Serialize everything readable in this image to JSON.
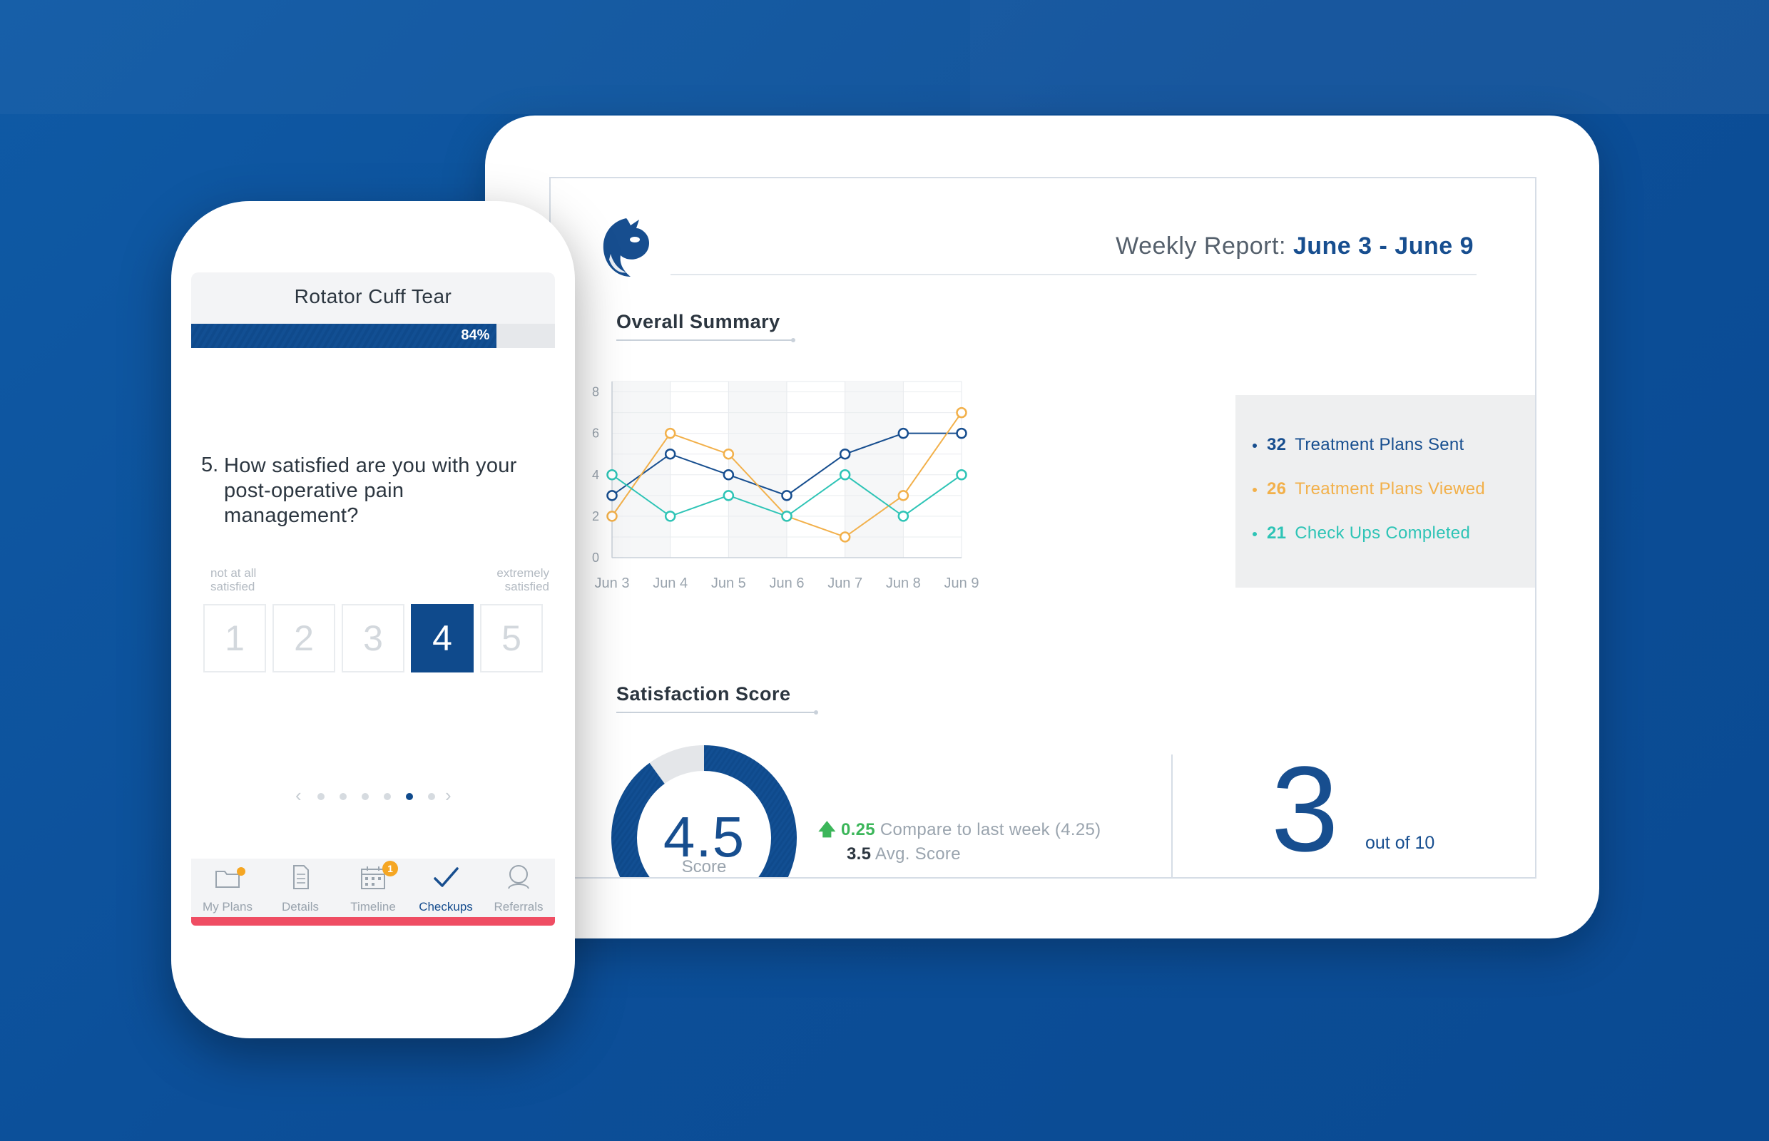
{
  "report": {
    "title_prefix": "Weekly Report:",
    "title_range": "June 3 - June 9",
    "overall_summary": "Overall Summary",
    "satisfaction_score": "Satisfaction Score"
  },
  "legend": [
    {
      "num": "32",
      "label": "Treatment Plans Sent",
      "color": "#174e8f"
    },
    {
      "num": "26",
      "label": "Treatment Plans Viewed",
      "color": "#f2b04a"
    },
    {
      "num": "21",
      "label": "Check Ups Completed",
      "color": "#2ec4b6"
    }
  ],
  "chart_data": {
    "type": "line",
    "categories": [
      "Jun 3",
      "Jun 4",
      "Jun 5",
      "Jun 6",
      "Jun 7",
      "Jun 8",
      "Jun 9"
    ],
    "yticks": [
      "0",
      "2",
      "4",
      "6",
      "8"
    ],
    "ylim": [
      0,
      8.5
    ],
    "grid": true,
    "series": [
      {
        "name": "Treatment Plans Sent",
        "color": "#174e8f",
        "values": [
          3,
          5,
          4,
          3,
          5,
          6,
          6
        ]
      },
      {
        "name": "Treatment Plans Viewed",
        "color": "#f2b04a",
        "values": [
          2,
          6,
          5,
          2,
          1,
          3,
          7
        ]
      },
      {
        "name": "Check Ups Completed",
        "color": "#2ec4b6",
        "values": [
          4,
          2,
          3,
          2,
          4,
          2,
          4
        ]
      }
    ]
  },
  "satisfaction": {
    "score": "4.5",
    "score_label": "Score",
    "score_fraction": 0.9,
    "delta": "0.25",
    "compare_text": "Compare to last week (4.25)",
    "avg_value": "3.5",
    "avg_label": "Avg. Score",
    "big_number": "3",
    "out_of": "out of 10"
  },
  "phone": {
    "title": "Rotator Cuff Tear",
    "progress_label": "84%",
    "progress_fraction": 0.84,
    "question_number": "5.",
    "question": "How satisfied are you with your post-operative pain management?",
    "scale_low": "not at all satisfied",
    "scale_high": "extremely satisfied",
    "ratings": [
      "1",
      "2",
      "3",
      "4",
      "5"
    ],
    "selected_rating": "4",
    "pager": {
      "count": 6,
      "active": 4
    },
    "tabs": [
      {
        "label": "My Plans",
        "icon": "folder-icon"
      },
      {
        "label": "Details",
        "icon": "document-icon"
      },
      {
        "label": "Timeline",
        "icon": "calendar-icon",
        "badge": "1"
      },
      {
        "label": "Checkups",
        "icon": "checkmark-icon"
      },
      {
        "label": "Referrals",
        "icon": "person-icon"
      }
    ],
    "active_tab": "Checkups"
  },
  "colors": {
    "brand": "#174e8f",
    "accent_red": "#ef4d63",
    "accent_orange": "#f5a623",
    "positive_green": "#3cb65a"
  }
}
